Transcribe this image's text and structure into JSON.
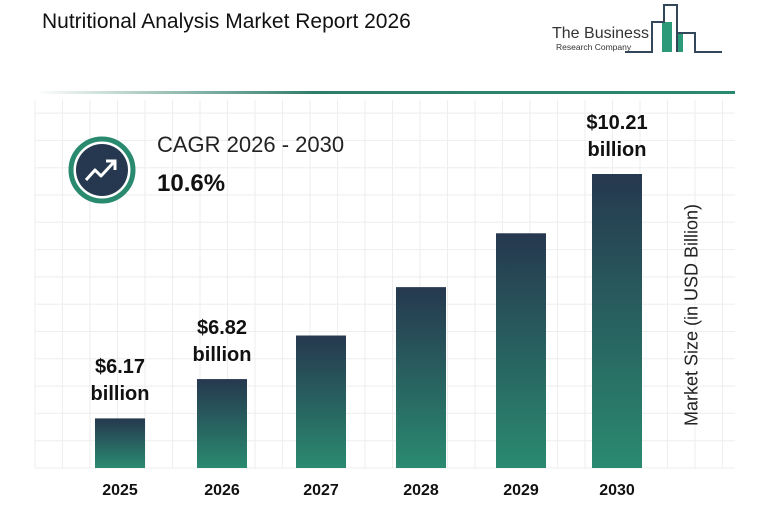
{
  "header": {
    "title": "Nutritional Analysis Market Report 2026"
  },
  "logo": {
    "line1": "The Business",
    "line2": "Research Company"
  },
  "cagr": {
    "label": "CAGR 2026 - 2030",
    "value": "10.6%",
    "icon": "trend-up-arrow-icon"
  },
  "colors": {
    "bar_top": "#26384f",
    "bar_bottom": "#2a8a70",
    "accent": "#2a8a6f",
    "icon_bg": "#26384f"
  },
  "chart_data": {
    "type": "bar",
    "categories": [
      "2025",
      "2026",
      "2027",
      "2028",
      "2029",
      "2030"
    ],
    "values": [
      6.17,
      6.82,
      7.54,
      8.34,
      9.23,
      10.21
    ],
    "data_labels": [
      {
        "index": 0,
        "line1": "$6.17",
        "line2": "billion"
      },
      {
        "index": 1,
        "line1": "$6.82",
        "line2": "billion"
      },
      {
        "index": 5,
        "line1": "$10.21",
        "line2": "billion"
      }
    ],
    "ylabel": "Market Size (in USD Billion)",
    "xlabel": "",
    "grid": true
  }
}
